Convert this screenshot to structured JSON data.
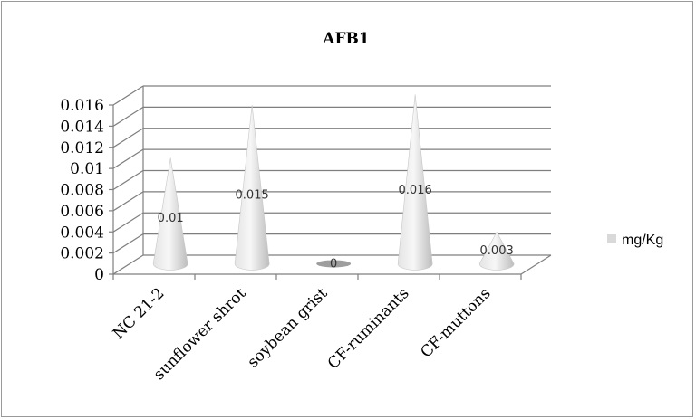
{
  "chart_data": {
    "type": "bar",
    "shape": "cone",
    "title": "AFB1",
    "categories": [
      "NC 21-2",
      "sunflower shrot",
      "soybean grist",
      "CF-ruminants",
      "CF-muttons"
    ],
    "series": [
      {
        "name": "mg/Kg",
        "values": [
          0.01,
          0.015,
          0,
          0.016,
          0.003
        ]
      }
    ],
    "data_labels": [
      "0.01",
      "0.015",
      "0",
      "0.016",
      "0.003"
    ],
    "y_ticks": [
      "0",
      "0.002",
      "0.004",
      "0.006",
      "0.008",
      "0.01",
      "0.012",
      "0.014",
      "0.016"
    ],
    "ylim": [
      0,
      0.016
    ],
    "xlabel": "",
    "ylabel": "",
    "grid": true,
    "legend_position": "right",
    "colors": {
      "cone": "#d9d9d9",
      "grid": "#7f7f7f",
      "legend_swatch": "#d9d9d9"
    }
  }
}
